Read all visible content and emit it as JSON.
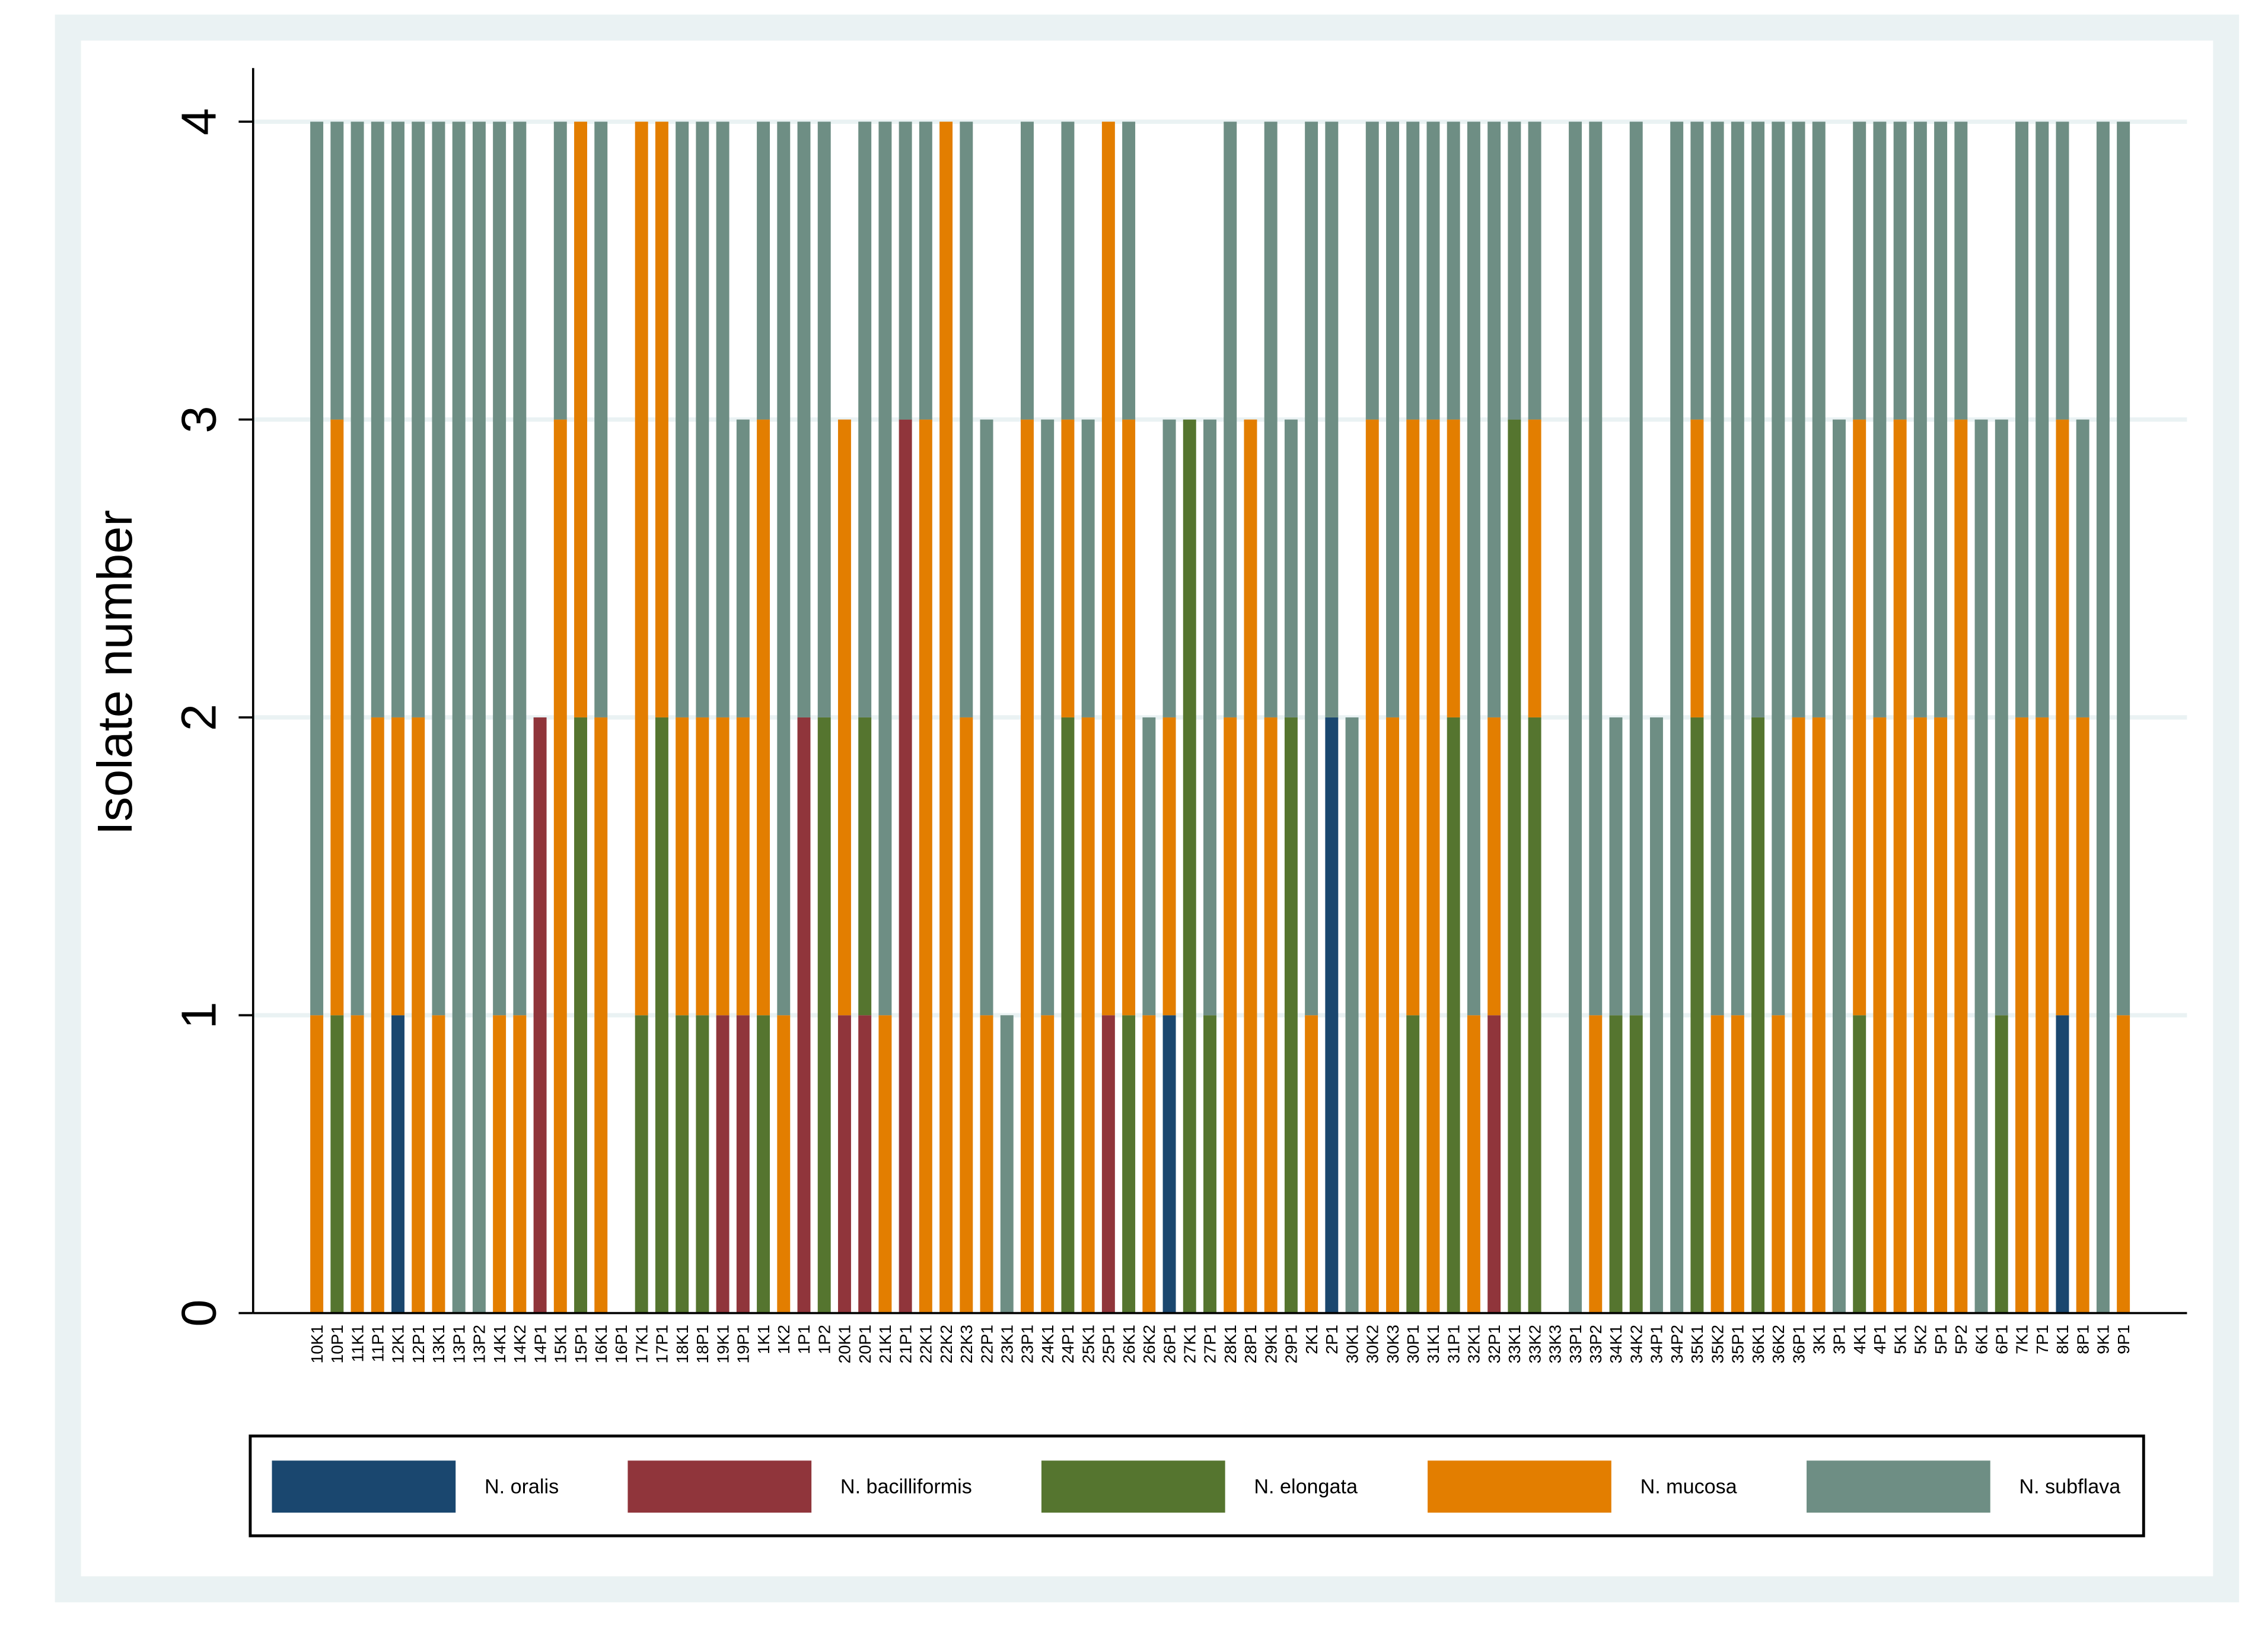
{
  "chart_data": {
    "type": "stacked_bar",
    "y_label": "Isolate number",
    "categories": [
      "10K1",
      "10P1",
      "11K1",
      "11P1",
      "12K1",
      "12P1",
      "13K1",
      "13P1",
      "13P2",
      "14K1",
      "14K2",
      "14P1",
      "15K1",
      "15P1",
      "16K1",
      "16P1",
      "17K1",
      "17P1",
      "18K1",
      "18P1",
      "19K1",
      "19P1",
      "1K1",
      "1K2",
      "1P1",
      "1P2",
      "20K1",
      "20P1",
      "21K1",
      "21P1",
      "22K1",
      "22K2",
      "22K3",
      "22P1",
      "23K1",
      "23P1",
      "24K1",
      "24P1",
      "25K1",
      "25P1",
      "26K1",
      "26K2",
      "26P1",
      "27K1",
      "27P1",
      "28K1",
      "28P1",
      "29K1",
      "29P1",
      "2K1",
      "2P1",
      "30K1",
      "30K2",
      "30K3",
      "30P1",
      "31K1",
      "31P1",
      "32K1",
      "32P1",
      "33K1",
      "33K2",
      "33K3",
      "33P1",
      "33P2",
      "34K1",
      "34K2",
      "34P1",
      "34P2",
      "35K1",
      "35K2",
      "35P1",
      "36K1",
      "36K2",
      "36P1",
      "3K1",
      "3P1",
      "4K1",
      "4P1",
      "5K1",
      "5K2",
      "5P1",
      "5P2",
      "6K1",
      "6P1",
      "7K1",
      "7P1",
      "8K1",
      "8P1",
      "9K1",
      "9P1"
    ],
    "series": [
      {
        "name": "N. oralis",
        "color": "#1a476f",
        "values": [
          0,
          0,
          0,
          0,
          1,
          0,
          0,
          0,
          0,
          0,
          0,
          0,
          0,
          0,
          0,
          0,
          0,
          0,
          0,
          0,
          0,
          0,
          0,
          0,
          0,
          0,
          0,
          0,
          0,
          0,
          0,
          0,
          0,
          0,
          0,
          0,
          0,
          0,
          0,
          0,
          0,
          0,
          1,
          0,
          0,
          0,
          0,
          0,
          0,
          0,
          2,
          0,
          0,
          0,
          0,
          0,
          0,
          0,
          0,
          0,
          0,
          0,
          0,
          0,
          0,
          0,
          0,
          0,
          0,
          0,
          0,
          0,
          0,
          0,
          0,
          0,
          0,
          0,
          0,
          0,
          0,
          0,
          0,
          0,
          0,
          0,
          1,
          0,
          0,
          0
        ]
      },
      {
        "name": "N. bacilliformis",
        "color": "#90353b",
        "values": [
          0,
          0,
          0,
          0,
          0,
          0,
          0,
          0,
          0,
          0,
          0,
          2,
          0,
          0,
          0,
          0,
          0,
          0,
          0,
          0,
          1,
          1,
          0,
          0,
          2,
          0,
          1,
          1,
          0,
          3,
          0,
          0,
          0,
          0,
          0,
          0,
          0,
          0,
          0,
          1,
          0,
          0,
          0,
          0,
          0,
          0,
          0,
          0,
          0,
          0,
          0,
          0,
          0,
          0,
          0,
          0,
          0,
          0,
          1,
          0,
          0,
          0,
          0,
          0,
          0,
          0,
          0,
          0,
          0,
          0,
          0,
          0,
          0,
          0,
          0,
          0,
          0,
          0,
          0,
          0,
          0,
          0,
          0,
          0,
          0,
          0,
          0,
          0,
          0,
          0
        ]
      },
      {
        "name": "N. elongata",
        "color": "#55752f",
        "values": [
          0,
          1,
          0,
          0,
          0,
          0,
          0,
          0,
          0,
          0,
          0,
          0,
          0,
          2,
          0,
          0,
          1,
          2,
          1,
          1,
          0,
          0,
          1,
          0,
          0,
          2,
          0,
          1,
          0,
          0,
          0,
          0,
          0,
          0,
          0,
          0,
          0,
          2,
          0,
          0,
          1,
          0,
          0,
          3,
          1,
          0,
          0,
          0,
          2,
          0,
          0,
          0,
          0,
          0,
          1,
          0,
          2,
          0,
          0,
          3,
          2,
          0,
          0,
          0,
          1,
          1,
          0,
          0,
          2,
          0,
          0,
          2,
          0,
          0,
          0,
          0,
          1,
          0,
          0,
          0,
          0,
          0,
          0,
          1,
          0,
          0,
          0,
          0,
          0,
          0
        ]
      },
      {
        "name": "N. mucosa",
        "color": "#e37e00",
        "values": [
          1,
          2,
          1,
          2,
          1,
          2,
          1,
          0,
          0,
          1,
          1,
          0,
          3,
          2,
          2,
          0,
          3,
          2,
          1,
          1,
          1,
          1,
          2,
          1,
          0,
          0,
          2,
          0,
          1,
          0,
          3,
          4,
          2,
          1,
          0,
          3,
          1,
          1,
          2,
          3,
          2,
          1,
          1,
          0,
          0,
          2,
          3,
          2,
          0,
          1,
          0,
          0,
          3,
          2,
          2,
          3,
          1,
          1,
          1,
          0,
          1,
          0,
          0,
          1,
          0,
          0,
          0,
          0,
          1,
          1,
          1,
          0,
          1,
          2,
          2,
          0,
          2,
          2,
          3,
          2,
          2,
          3,
          0,
          0,
          2,
          2,
          2,
          2,
          0,
          1
        ]
      },
      {
        "name": "N. subflava",
        "color": "#6e8e84",
        "values": [
          3,
          1,
          3,
          2,
          2,
          2,
          3,
          4,
          4,
          3,
          3,
          0,
          1,
          0,
          2,
          0,
          0,
          0,
          2,
          2,
          2,
          1,
          1,
          3,
          2,
          2,
          0,
          2,
          3,
          1,
          1,
          0,
          2,
          2,
          1,
          1,
          2,
          1,
          1,
          0,
          1,
          1,
          1,
          0,
          2,
          2,
          0,
          2,
          1,
          3,
          2,
          2,
          1,
          2,
          1,
          1,
          1,
          3,
          2,
          1,
          1,
          0,
          4,
          3,
          1,
          3,
          2,
          4,
          1,
          3,
          3,
          2,
          3,
          2,
          2,
          3,
          1,
          2,
          1,
          2,
          2,
          1,
          3,
          2,
          2,
          2,
          1,
          1,
          4,
          3
        ]
      }
    ],
    "ylim": [
      0,
      4.18
    ],
    "yticks": [
      0,
      1,
      2,
      3,
      4
    ],
    "grid": true,
    "legend": "bottom"
  }
}
